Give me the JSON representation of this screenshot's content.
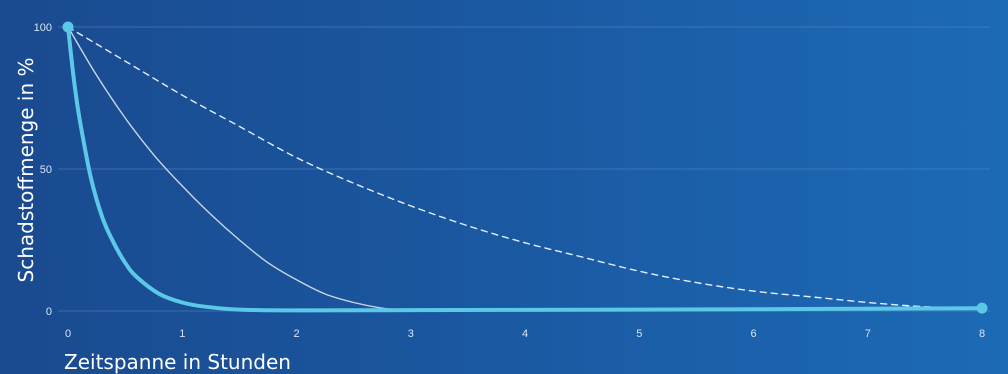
{
  "chart_data": {
    "type": "line",
    "title": "",
    "xlabel": "Zeitspanne in Stunden",
    "ylabel": "Schadstoffmenge in %",
    "xlim": [
      0,
      8
    ],
    "ylim": [
      0,
      100
    ],
    "x_ticks": [
      "0",
      "1",
      "2",
      "3",
      "4",
      "5",
      "6",
      "7",
      "8"
    ],
    "y_ticks": [
      "0",
      "50",
      "100"
    ],
    "grid": "horizontal",
    "legend": "none",
    "colors": {
      "thick_curve": "#5bc8e8",
      "thin_curve": "#c9d6e6",
      "dashed_curve": "#e6eef8",
      "grid": "#5a87c4",
      "tick_text": "#d6e4f5",
      "axis_text": "#ffffff"
    },
    "series": [
      {
        "style": "thick-solid",
        "color": "#5bc8e8",
        "x": [
          0,
          0.05,
          0.1,
          0.2,
          0.3,
          0.4,
          0.5,
          0.6,
          0.8,
          1.0,
          1.2,
          1.5,
          2,
          3,
          4,
          5,
          6,
          7,
          8
        ],
        "y": [
          100,
          82,
          68,
          47,
          33,
          24,
          17,
          12,
          6,
          3,
          1.5,
          0.5,
          0.2,
          0.3,
          0.4,
          0.5,
          0.6,
          0.8,
          1
        ]
      },
      {
        "style": "thin-solid",
        "color": "#c9d6e6",
        "x": [
          0,
          0.25,
          0.5,
          0.75,
          1.0,
          1.25,
          1.5,
          1.75,
          2.0,
          2.25,
          2.5,
          2.75,
          3.0
        ],
        "y": [
          100,
          83,
          68,
          55,
          44,
          34,
          25,
          17,
          11,
          6,
          3,
          1,
          0
        ]
      },
      {
        "style": "dashed",
        "color": "#e6eef8",
        "x": [
          0,
          0.5,
          1,
          1.5,
          2,
          2.5,
          3,
          3.5,
          4,
          4.5,
          5,
          5.5,
          6,
          6.5,
          7,
          7.5,
          8
        ],
        "y": [
          100,
          88,
          76,
          65,
          54,
          45,
          37,
          30,
          24,
          19,
          14,
          10,
          7,
          5,
          3,
          1.5,
          1
        ]
      }
    ],
    "markers": [
      {
        "x": 0,
        "y": 100,
        "color": "#5bc8e8"
      },
      {
        "x": 8,
        "y": 1,
        "color": "#5bc8e8"
      }
    ]
  }
}
